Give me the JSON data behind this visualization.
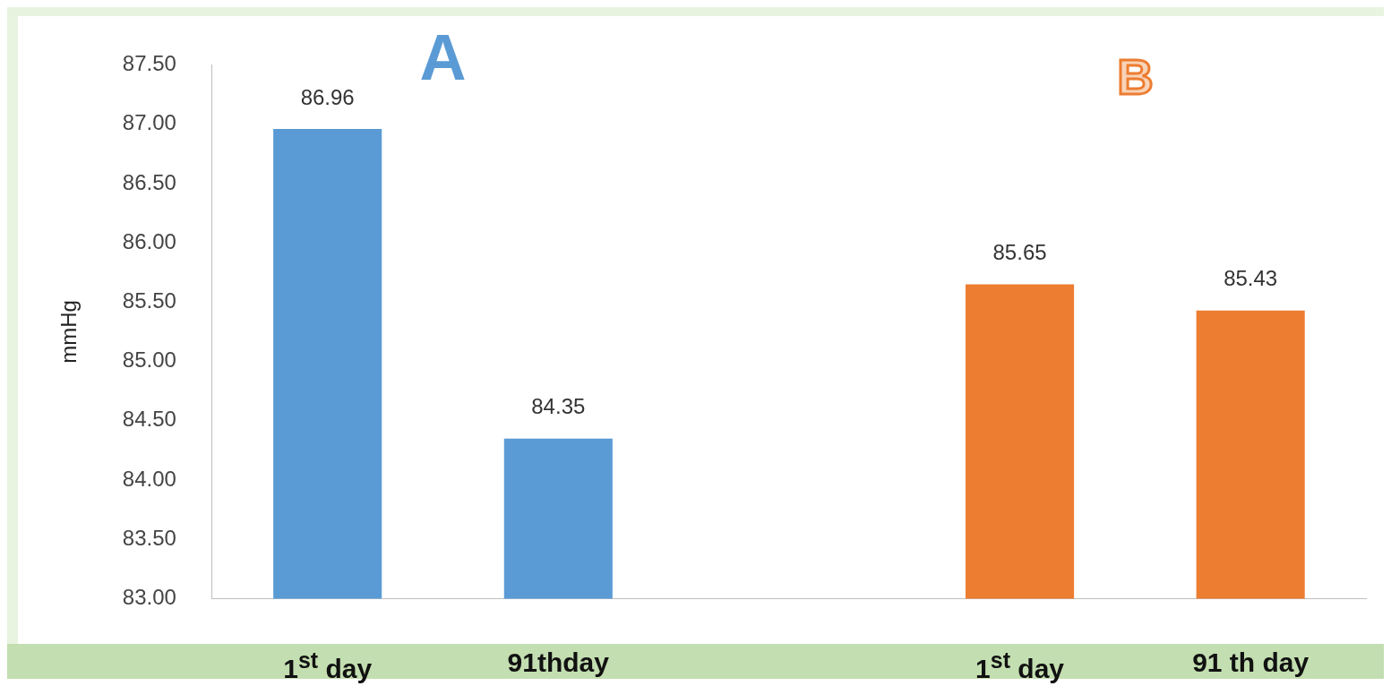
{
  "chart_data": {
    "type": "bar",
    "ylabel": "mmHg",
    "categories": [
      "1$^{st}$ day",
      "91thday",
      null,
      "1$^{st}$ day",
      "91 th day"
    ],
    "values": [
      86.96,
      84.35,
      null,
      85.65,
      85.43
    ],
    "colors": [
      "#5b9bd5",
      "#5b9bd5",
      "#5b9bd5",
      "#ed7d31",
      "#ed7d31"
    ],
    "ylim": [
      83,
      87.5
    ],
    "yticks": [
      {
        "value": 83,
        "label": "83.00"
      },
      {
        "value": 83.5,
        "label": "83.50"
      },
      {
        "value": 84,
        "label": "84.00"
      },
      {
        "value": 84.5,
        "label": "84.50"
      },
      {
        "value": 85,
        "label": "85.00"
      },
      {
        "value": 85.5,
        "label": "85.50"
      },
      {
        "value": 86,
        "label": "86.00"
      },
      {
        "value": 86.5,
        "label": "86.50"
      },
      {
        "value": 87,
        "label": "87.00"
      },
      {
        "value": 87.5,
        "label": "87.50"
      }
    ],
    "annotations": [
      "A",
      "B"
    ],
    "data_labels": true,
    "grid": false,
    "legend": false
  }
}
